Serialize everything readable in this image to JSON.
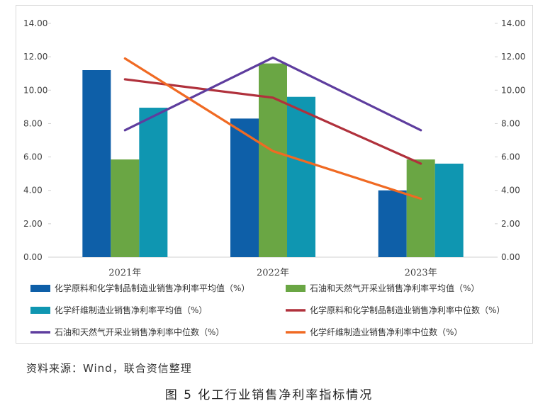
{
  "source_note": "资料来源：Wind，联合资信整理",
  "figure_caption": "图 5  化工行业销售净利率指标情况",
  "chart_data": {
    "type": "bar",
    "categories": [
      "2021年",
      "2022年",
      "2023年"
    ],
    "ylim": [
      0,
      14
    ],
    "y_ticks": [
      "0.00",
      "2.00",
      "4.00",
      "6.00",
      "8.00",
      "10.00",
      "12.00",
      "14.00"
    ],
    "y2lim": [
      0,
      14
    ],
    "y2_ticks": [
      "0.00",
      "2.00",
      "4.00",
      "6.00",
      "8.00",
      "10.00",
      "12.00",
      "14.00"
    ],
    "grid": false,
    "legend_position": "bottom",
    "bar_series": [
      {
        "name": "化学原料和化学制品制造业销售净利率平均值（%）",
        "color": "#0e5fa8",
        "values": [
          11.2,
          8.3,
          4.0
        ]
      },
      {
        "name": "石油和天然气开采业销售净利率平均值（%）",
        "color": "#6aa644",
        "values": [
          5.85,
          11.6,
          5.85
        ]
      },
      {
        "name": "化学纤维制造业销售净利率平均值（%）",
        "color": "#0f96b1",
        "values": [
          8.95,
          9.6,
          5.6
        ]
      }
    ],
    "line_series": [
      {
        "name": "化学原料和化学制品制造业销售净利率中位数（%）",
        "color": "#b0313c",
        "values": [
          10.65,
          9.55,
          5.6
        ]
      },
      {
        "name": "石油和天然气开采业销售净利率中位数（%）",
        "color": "#5e3d9e",
        "values": [
          7.6,
          11.95,
          7.6
        ]
      },
      {
        "name": "化学纤维制造业销售净利率中位数（%）",
        "color": "#f06a23",
        "values": [
          11.9,
          6.35,
          3.5
        ]
      }
    ]
  }
}
